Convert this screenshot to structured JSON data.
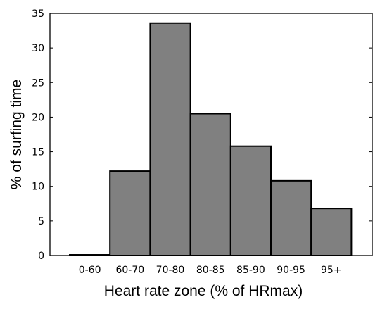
{
  "chart_data": {
    "type": "bar",
    "categories": [
      "0-60",
      "60-70",
      "70-80",
      "80-85",
      "85-90",
      "90-95",
      "95+"
    ],
    "values": [
      0.1,
      12.2,
      33.6,
      20.5,
      15.8,
      10.8,
      6.8
    ],
    "title": "",
    "xlabel": "Heart rate zone (% of HRmax)",
    "ylabel": "% of surfing time",
    "ylim": [
      0,
      35
    ],
    "yticks": [
      0,
      5,
      10,
      15,
      20,
      25,
      30,
      35
    ],
    "grid": false,
    "legend": "none",
    "bar_color": "#808080",
    "bar_edge_color": "#000000"
  }
}
